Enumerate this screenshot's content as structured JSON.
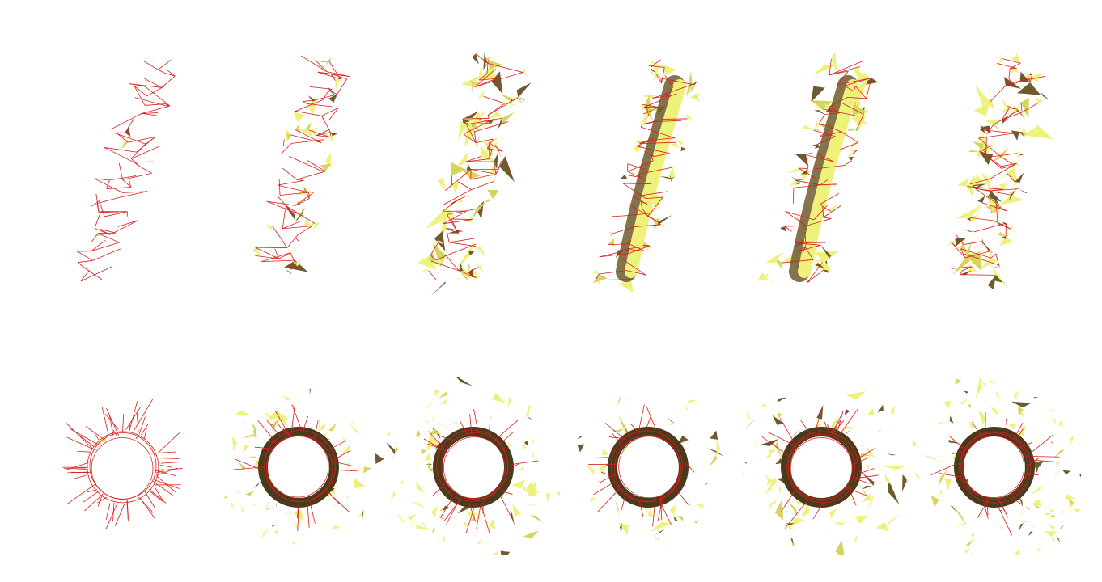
{
  "figure": {
    "description_visible_text": "",
    "colors": {
      "background": "#ffffff",
      "wireframe": "#d81e1e",
      "surface_light": "#eef27a",
      "surface_mid": "#d6d45c",
      "surface_shadow": "#6e5a2e",
      "surface_dark": "#4a3a1c"
    },
    "rows": [
      {
        "view": "side",
        "panels": [
          {
            "style": "wireframe",
            "coverage": 0.02
          },
          {
            "style": "sparse-surface",
            "coverage": 0.3
          },
          {
            "style": "dense-surface",
            "coverage": 0.75
          },
          {
            "style": "tube-surface",
            "coverage": 0.55
          },
          {
            "style": "tube-surface",
            "coverage": 0.65
          },
          {
            "style": "dense-surface",
            "coverage": 0.85
          }
        ]
      },
      {
        "view": "top",
        "panels": [
          {
            "style": "wireframe",
            "coverage": 0.03
          },
          {
            "style": "sparse-surface",
            "coverage": 0.45
          },
          {
            "style": "dense-surface",
            "coverage": 0.7
          },
          {
            "style": "tube-surface",
            "coverage": 0.4
          },
          {
            "style": "tube-surface",
            "coverage": 0.6
          },
          {
            "style": "dense-surface",
            "coverage": 0.75
          }
        ]
      }
    ]
  }
}
